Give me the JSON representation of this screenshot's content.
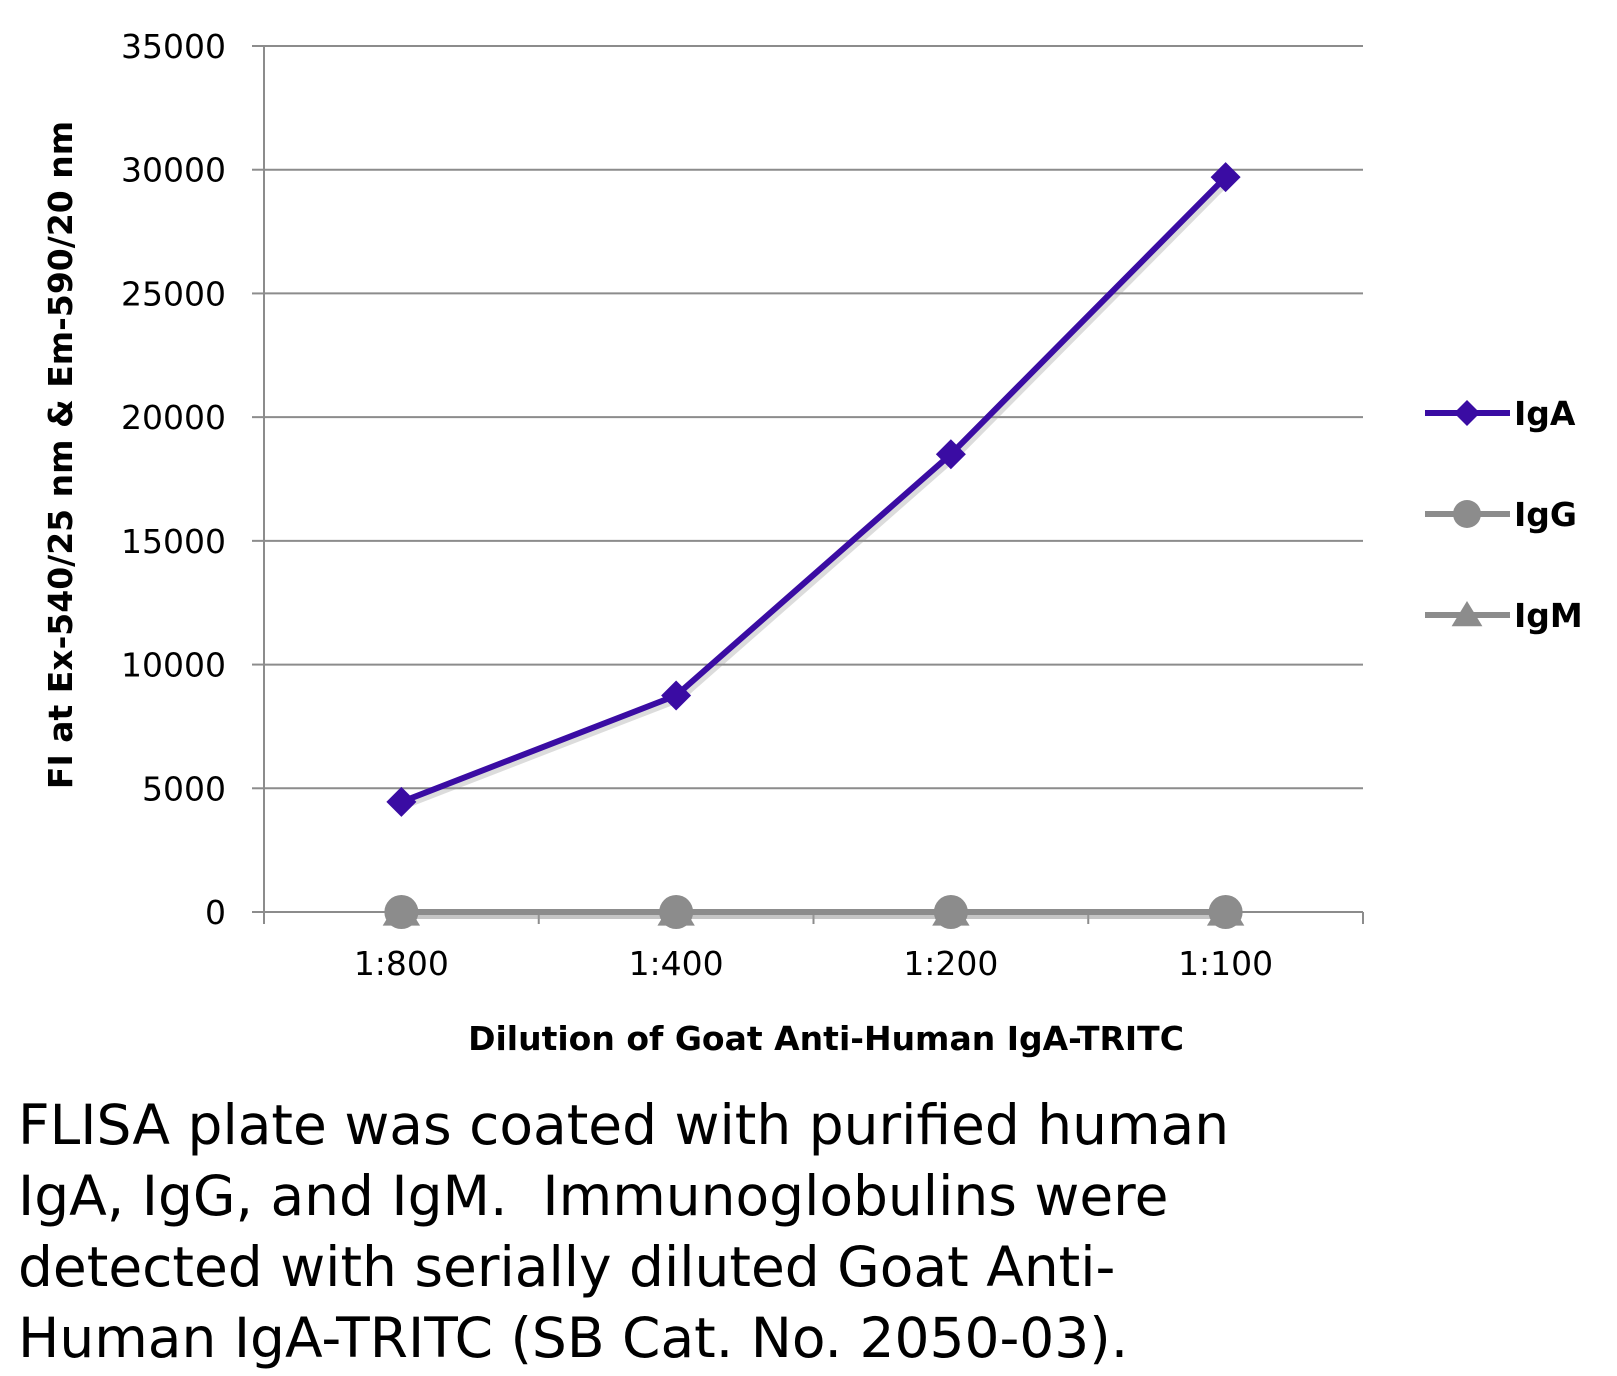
{
  "chart_data": {
    "type": "line",
    "categories": [
      "1:800",
      "1:400",
      "1:200",
      "1:100"
    ],
    "series": [
      {
        "name": "IgA",
        "values": [
          4450,
          8750,
          18500,
          29700
        ],
        "color": "#3a0ca3",
        "marker": "diamond"
      },
      {
        "name": "IgG",
        "values": [
          0,
          0,
          0,
          0
        ],
        "color": "#8c8c8c",
        "marker": "circle"
      },
      {
        "name": "IgM",
        "values": [
          0,
          0,
          0,
          0
        ],
        "color": "#8c8c8c",
        "marker": "triangle"
      }
    ],
    "yticks": [
      0,
      5000,
      10000,
      15000,
      20000,
      25000,
      30000,
      35000
    ],
    "ylim": [
      0,
      35000
    ],
    "xlabel": "Dilution of Goat Anti-Human IgA-TRITC",
    "ylabel": "FI at Ex-540/25 nm & Em-590/20 nm",
    "grid": "horizontal",
    "legend_position": "right"
  },
  "caption": "FLISA plate was coated with purified human\nIgA, IgG, and IgM.  Immunoglobulins were\ndetected with serially diluted Goat Anti-\nHuman IgA-TRITC (SB Cat. No. 2050-03)."
}
